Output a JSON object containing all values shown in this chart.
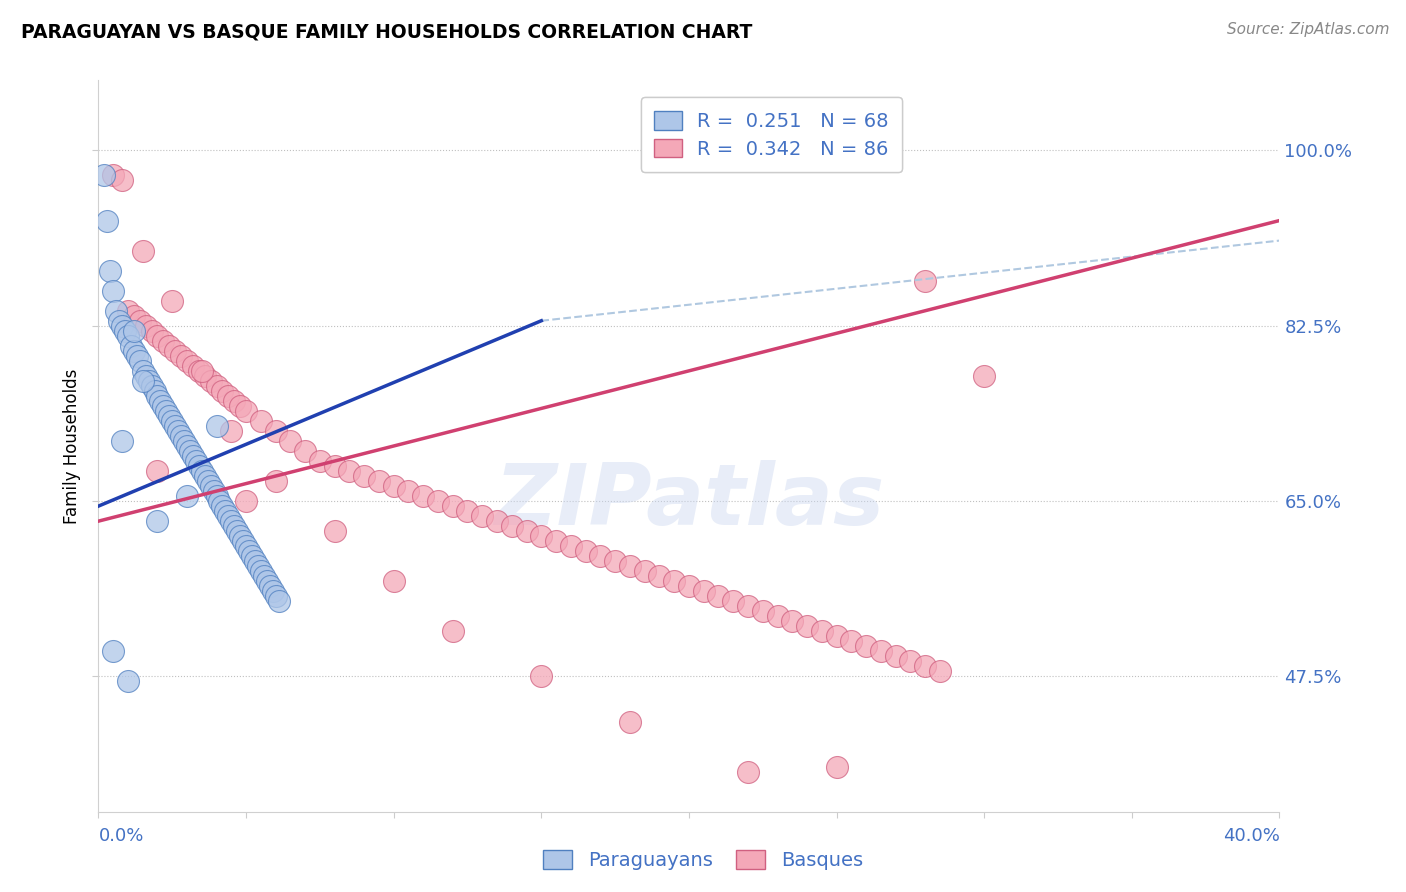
{
  "title": "PARAGUAYAN VS BASQUE FAMILY HOUSEHOLDS CORRELATION CHART",
  "source": "Source: ZipAtlas.com",
  "ylabel": "Family Households",
  "legend_label_blue": "Paraguayans",
  "legend_label_pink": "Basques",
  "watermark": "ZIPatlas",
  "blue_fill_color": "#aec6e8",
  "pink_fill_color": "#f4a8b8",
  "blue_edge_color": "#5080c0",
  "pink_edge_color": "#d06080",
  "blue_line_color": "#2040b0",
  "pink_line_color": "#d04070",
  "dashed_line_color": "#b0c8e0",
  "ytick_values": [
    47.5,
    65.0,
    82.5,
    100.0
  ],
  "r_blue": "0.251",
  "n_blue": "68",
  "r_pink": "0.342",
  "n_pink": "86",
  "accent_color": "#4472c4",
  "blue_x": [
    0.2,
    0.3,
    0.4,
    0.5,
    0.6,
    0.7,
    0.8,
    0.9,
    1.0,
    1.1,
    1.2,
    1.3,
    1.4,
    1.5,
    1.6,
    1.7,
    1.8,
    1.9,
    2.0,
    2.1,
    2.2,
    2.3,
    2.4,
    2.5,
    2.6,
    2.7,
    2.8,
    2.9,
    3.0,
    3.1,
    3.2,
    3.3,
    3.4,
    3.5,
    3.6,
    3.7,
    3.8,
    3.9,
    4.0,
    4.1,
    4.2,
    4.3,
    4.4,
    4.5,
    4.6,
    4.7,
    4.8,
    4.9,
    5.0,
    5.1,
    5.2,
    5.3,
    5.4,
    5.5,
    5.6,
    5.7,
    5.8,
    5.9,
    6.0,
    6.1,
    0.5,
    1.0,
    3.0,
    2.0,
    1.5,
    0.8,
    4.0,
    1.2
  ],
  "blue_y": [
    97.5,
    93.0,
    88.0,
    86.0,
    84.0,
    83.0,
    82.5,
    82.0,
    81.5,
    80.5,
    80.0,
    79.5,
    79.0,
    78.0,
    77.5,
    77.0,
    76.5,
    76.0,
    75.5,
    75.0,
    74.5,
    74.0,
    73.5,
    73.0,
    72.5,
    72.0,
    71.5,
    71.0,
    70.5,
    70.0,
    69.5,
    69.0,
    68.5,
    68.0,
    67.5,
    67.0,
    66.5,
    66.0,
    65.5,
    65.0,
    64.5,
    64.0,
    63.5,
    63.0,
    62.5,
    62.0,
    61.5,
    61.0,
    60.5,
    60.0,
    59.5,
    59.0,
    58.5,
    58.0,
    57.5,
    57.0,
    56.5,
    56.0,
    55.5,
    55.0,
    50.0,
    47.0,
    65.5,
    63.0,
    77.0,
    71.0,
    72.5,
    82.0
  ],
  "pink_x": [
    0.5,
    0.8,
    1.0,
    1.2,
    1.4,
    1.6,
    1.8,
    2.0,
    2.2,
    2.4,
    2.6,
    2.8,
    3.0,
    3.2,
    3.4,
    3.6,
    3.8,
    4.0,
    4.2,
    4.4,
    4.6,
    4.8,
    5.0,
    5.5,
    6.0,
    6.5,
    7.0,
    7.5,
    8.0,
    8.5,
    9.0,
    9.5,
    10.0,
    10.5,
    11.0,
    11.5,
    12.0,
    12.5,
    13.0,
    13.5,
    14.0,
    14.5,
    15.0,
    15.5,
    16.0,
    16.5,
    17.0,
    17.5,
    18.0,
    18.5,
    19.0,
    19.5,
    20.0,
    20.5,
    21.0,
    21.5,
    22.0,
    22.5,
    23.0,
    23.5,
    24.0,
    24.5,
    25.0,
    25.5,
    26.0,
    26.5,
    27.0,
    27.5,
    28.0,
    28.5,
    1.5,
    2.5,
    3.5,
    4.5,
    6.0,
    8.0,
    10.0,
    12.0,
    15.0,
    18.0,
    22.0,
    25.0,
    28.0,
    30.0,
    2.0,
    5.0
  ],
  "pink_y": [
    97.5,
    97.0,
    84.0,
    83.5,
    83.0,
    82.5,
    82.0,
    81.5,
    81.0,
    80.5,
    80.0,
    79.5,
    79.0,
    78.5,
    78.0,
    77.5,
    77.0,
    76.5,
    76.0,
    75.5,
    75.0,
    74.5,
    74.0,
    73.0,
    72.0,
    71.0,
    70.0,
    69.0,
    68.5,
    68.0,
    67.5,
    67.0,
    66.5,
    66.0,
    65.5,
    65.0,
    64.5,
    64.0,
    63.5,
    63.0,
    62.5,
    62.0,
    61.5,
    61.0,
    60.5,
    60.0,
    59.5,
    59.0,
    58.5,
    58.0,
    57.5,
    57.0,
    56.5,
    56.0,
    55.5,
    55.0,
    54.5,
    54.0,
    53.5,
    53.0,
    52.5,
    52.0,
    51.5,
    51.0,
    50.5,
    50.0,
    49.5,
    49.0,
    48.5,
    48.0,
    90.0,
    85.0,
    78.0,
    72.0,
    67.0,
    62.0,
    57.0,
    52.0,
    47.5,
    43.0,
    38.0,
    38.5,
    87.0,
    77.5,
    68.0,
    65.0
  ]
}
